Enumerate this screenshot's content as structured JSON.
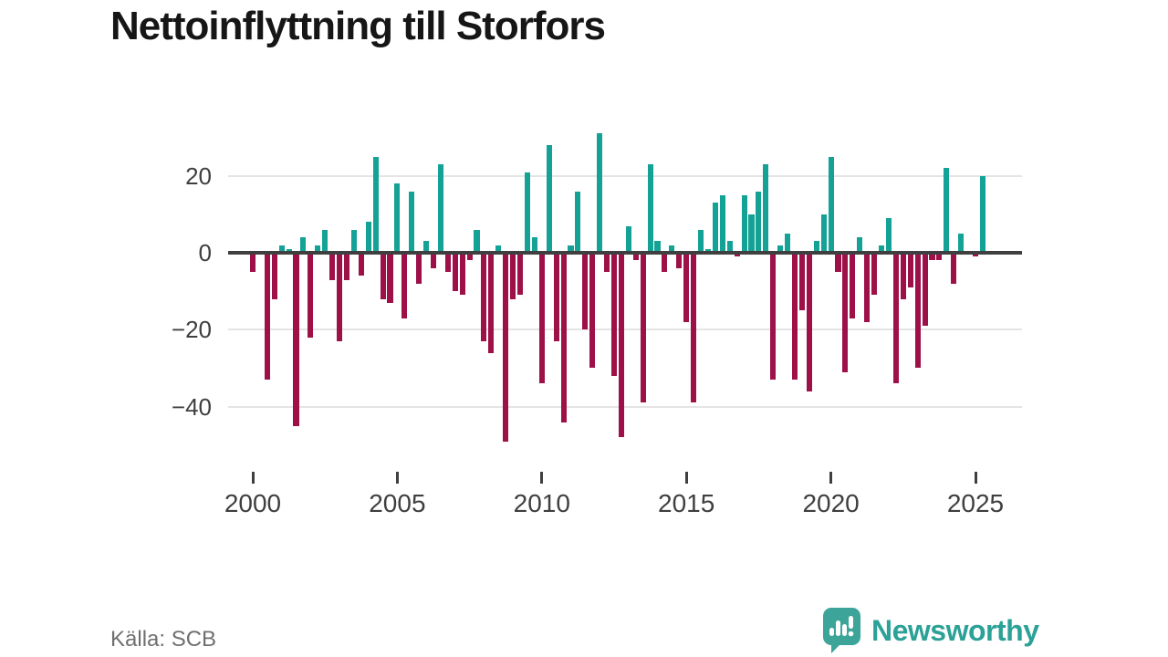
{
  "title": "Nettoinflyttning till Storfors",
  "source": "Källa: SCB",
  "branding": {
    "name": "Newsworthy",
    "icon": "newsworthy-speech-bubble-chart-icon"
  },
  "colors": {
    "positive": "#14a296",
    "negative": "#9e1148",
    "axis": "#3f3f3f",
    "grid": "#e4e4e4",
    "title": "#161616",
    "tick_label": "#3f3f3f",
    "source_text": "#6f6f6f",
    "brand": "#2ba197"
  },
  "chart_data": {
    "type": "bar",
    "title": "Nettoinflyttning till Storfors",
    "xlabel": "",
    "ylabel": "",
    "x_unit": "quarter",
    "start_quarter": "2000-Q1",
    "end_quarter": "2025-Q2",
    "grid": "horizontal",
    "legend": "none",
    "ylim": [
      -52,
      34
    ],
    "y_ticks": [
      {
        "value": 20,
        "label": "20"
      },
      {
        "value": 0,
        "label": "0"
      },
      {
        "value": -20,
        "label": "−20"
      },
      {
        "value": -40,
        "label": "−40"
      }
    ],
    "x_ticks": [
      {
        "year": 2000,
        "label": "2000"
      },
      {
        "year": 2005,
        "label": "2005"
      },
      {
        "year": 2010,
        "label": "2010"
      },
      {
        "year": 2015,
        "label": "2015"
      },
      {
        "year": 2020,
        "label": "2020"
      },
      {
        "year": 2025,
        "label": "2025"
      }
    ],
    "series_name": "Nettoinflyttning per kvartal",
    "years": [
      {
        "year": 2000,
        "q": [
          -5,
          0,
          -33,
          -12
        ]
      },
      {
        "year": 2001,
        "q": [
          2,
          1,
          -45,
          4
        ]
      },
      {
        "year": 2002,
        "q": [
          -22,
          2,
          6,
          -7
        ]
      },
      {
        "year": 2003,
        "q": [
          -23,
          -7,
          6,
          -6
        ]
      },
      {
        "year": 2004,
        "q": [
          8,
          25,
          -12,
          -13
        ]
      },
      {
        "year": 2005,
        "q": [
          18,
          -17,
          16,
          -8
        ]
      },
      {
        "year": 2006,
        "q": [
          3,
          -4,
          23,
          -5
        ]
      },
      {
        "year": 2007,
        "q": [
          -10,
          -11,
          -2,
          6
        ]
      },
      {
        "year": 2008,
        "q": [
          -23,
          -26,
          2,
          -49
        ]
      },
      {
        "year": 2009,
        "q": [
          -12,
          -11,
          21,
          4
        ]
      },
      {
        "year": 2010,
        "q": [
          -34,
          28,
          -23,
          -44
        ]
      },
      {
        "year": 2011,
        "q": [
          2,
          16,
          -20,
          -30
        ]
      },
      {
        "year": 2012,
        "q": [
          31,
          -5,
          -32,
          -48
        ]
      },
      {
        "year": 2013,
        "q": [
          7,
          -2,
          -39,
          23
        ]
      },
      {
        "year": 2014,
        "q": [
          3,
          -5,
          2,
          -4
        ]
      },
      {
        "year": 2015,
        "q": [
          -18,
          -39,
          6,
          1
        ]
      },
      {
        "year": 2016,
        "q": [
          13,
          15,
          3,
          -1
        ]
      },
      {
        "year": 2017,
        "q": [
          15,
          10,
          16,
          23
        ]
      },
      {
        "year": 2018,
        "q": [
          -33,
          2,
          5,
          -33
        ]
      },
      {
        "year": 2019,
        "q": [
          -15,
          -36,
          3,
          10
        ]
      },
      {
        "year": 2020,
        "q": [
          25,
          -5,
          -31,
          -17
        ]
      },
      {
        "year": 2021,
        "q": [
          4,
          -18,
          -11,
          2
        ]
      },
      {
        "year": 2022,
        "q": [
          9,
          -34,
          -12,
          -9
        ]
      },
      {
        "year": 2023,
        "q": [
          -30,
          -19,
          -2,
          -2
        ]
      },
      {
        "year": 2024,
        "q": [
          22,
          -8,
          5,
          0
        ]
      },
      {
        "year": 2025,
        "q": [
          -1,
          20
        ]
      }
    ]
  }
}
